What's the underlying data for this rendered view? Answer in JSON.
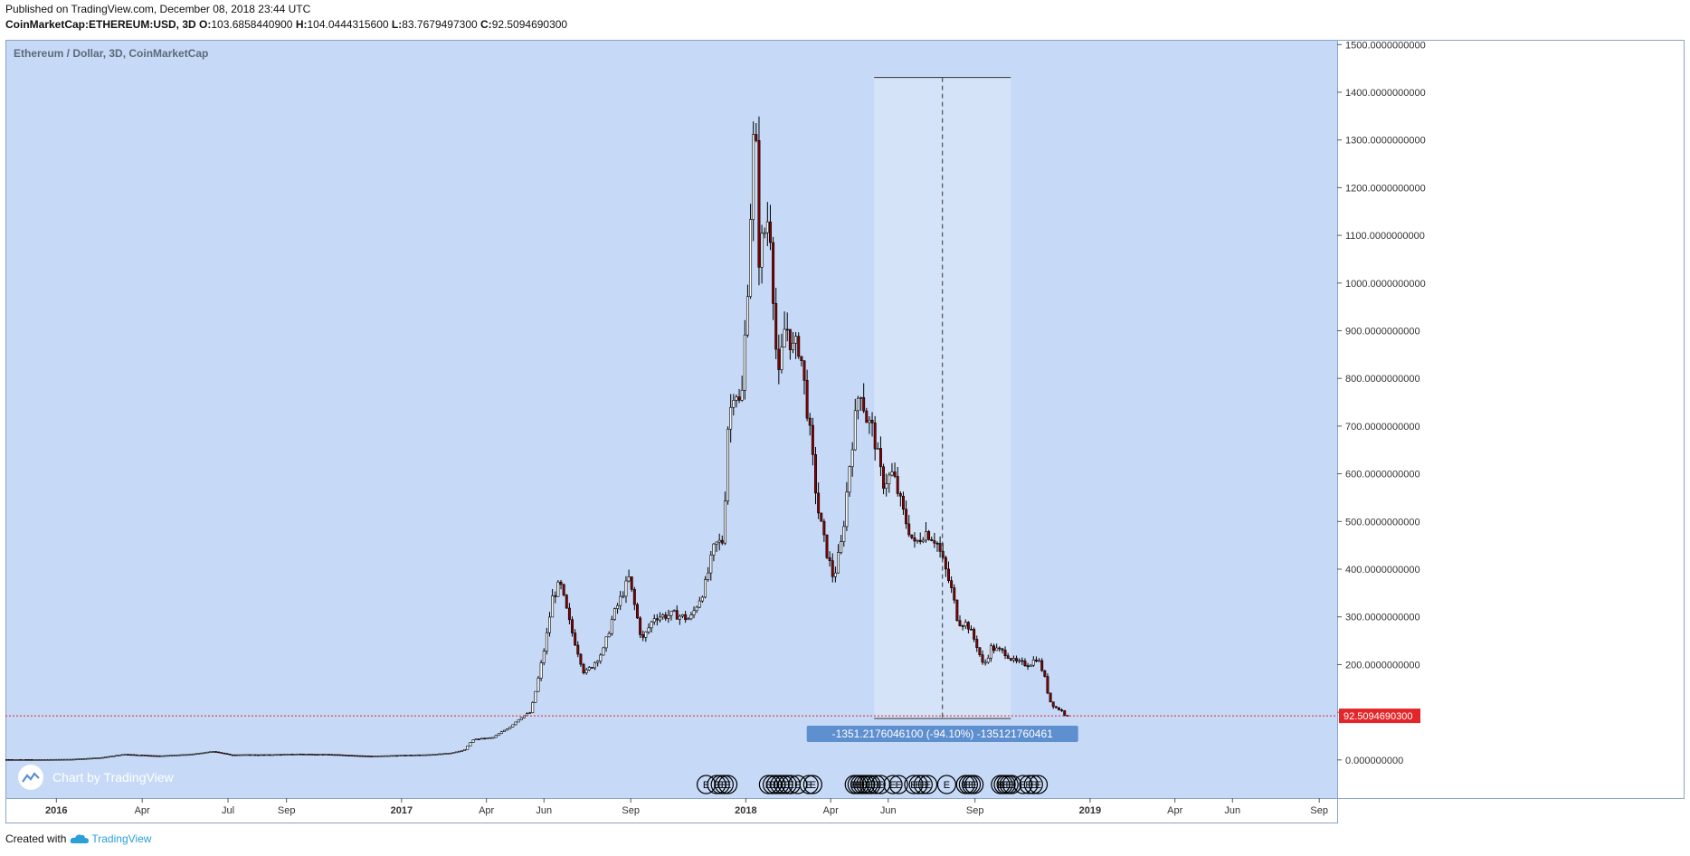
{
  "header": {
    "published": "Published on TradingView.com, December 08, 2018 23:44 UTC",
    "symbol": "CoinMarketCap:ETHEREUM:USD, 3D",
    "o_label": "O:",
    "o_value": "103.6858440900",
    "h_label": "H:",
    "h_value": "104.0444315600",
    "l_label": "L:",
    "l_value": "83.7679497300",
    "c_label": "C:",
    "c_value": "92.5094690300"
  },
  "chart_title": "Ethereum / Dollar, 3D, CoinMarketCap",
  "watermark": "Chart by TradingView",
  "footer": {
    "created_with": "Created with",
    "brand": "TradingView"
  },
  "colors": {
    "background": "#c6d9f6",
    "up_candle": "#ffffff",
    "down_candle": "#8b0000",
    "wick": "#000000",
    "price_line": "#e3262a",
    "measure_box": "#d4e3f8",
    "measure_label_bg": "#5e8fcf"
  },
  "chart_data": {
    "type": "candlestick",
    "title": "Ethereum / Dollar, 3D, CoinMarketCap",
    "interval": "3D",
    "x_tick_labels": [
      "2016",
      "Apr",
      "Jul",
      "Sep",
      "2017",
      "Apr",
      "Jun",
      "Sep",
      "2018",
      "Apr",
      "Jun",
      "Sep",
      "2019",
      "Apr",
      "Jun",
      "Sep"
    ],
    "x_tick_dates": [
      "2016-01-01",
      "2016-04-01",
      "2016-07-01",
      "2016-09-01",
      "2017-01-01",
      "2017-04-01",
      "2017-06-01",
      "2017-09-01",
      "2018-01-01",
      "2018-04-01",
      "2018-06-01",
      "2018-09-01",
      "2019-01-01",
      "2019-04-01",
      "2019-06-01",
      "2019-09-01"
    ],
    "y_tick_labels": [
      "0.000000000",
      "100.0000000000",
      "200.0000000000",
      "300.0000000000",
      "400.0000000000",
      "500.0000000000",
      "600.0000000000",
      "700.0000000000",
      "800.0000000000",
      "900.0000000000",
      "1000.0000000000",
      "1100.0000000000",
      "1200.0000000000",
      "1300.0000000000",
      "1400.0000000000",
      "1500.0000000000"
    ],
    "ylim": [
      -80,
      1510
    ],
    "xlim": [
      "2015-11-08",
      "2019-09-20"
    ],
    "last_price": 92.50946903,
    "last_price_label": "92.5094690300",
    "price_path": [
      [
        "2015-11-08",
        0.9
      ],
      [
        "2015-12-15",
        0.85
      ],
      [
        "2016-01-20",
        1.5
      ],
      [
        "2016-02-20",
        5
      ],
      [
        "2016-03-15",
        12
      ],
      [
        "2016-04-20",
        8.5
      ],
      [
        "2016-05-25",
        12
      ],
      [
        "2016-06-18",
        18
      ],
      [
        "2016-07-05",
        11
      ],
      [
        "2016-08-15",
        11
      ],
      [
        "2016-09-15",
        12.5
      ],
      [
        "2016-10-20",
        11.5
      ],
      [
        "2016-12-01",
        8
      ],
      [
        "2017-01-05",
        10
      ],
      [
        "2017-02-05",
        11.5
      ],
      [
        "2017-02-25",
        15
      ],
      [
        "2017-03-10",
        20
      ],
      [
        "2017-03-20",
        43
      ],
      [
        "2017-04-10",
        47
      ],
      [
        "2017-04-28",
        70
      ],
      [
        "2017-05-10",
        90
      ],
      [
        "2017-05-20",
        100
      ],
      [
        "2017-05-28",
        170
      ],
      [
        "2017-06-05",
        250
      ],
      [
        "2017-06-12",
        340
      ],
      [
        "2017-06-20",
        370
      ],
      [
        "2017-07-01",
        280
      ],
      [
        "2017-07-16",
        180
      ],
      [
        "2017-07-25",
        200
      ],
      [
        "2017-08-05",
        230
      ],
      [
        "2017-08-15",
        300
      ],
      [
        "2017-09-01",
        380
      ],
      [
        "2017-09-15",
        250
      ],
      [
        "2017-09-28",
        300
      ],
      [
        "2017-10-20",
        305
      ],
      [
        "2017-11-05",
        295
      ],
      [
        "2017-11-20",
        360
      ],
      [
        "2017-12-01",
        450
      ],
      [
        "2017-12-10",
        460
      ],
      [
        "2017-12-15",
        700
      ],
      [
        "2017-12-22",
        790
      ],
      [
        "2017-12-29",
        730
      ],
      [
        "2018-01-05",
        1000
      ],
      [
        "2018-01-10",
        1250
      ],
      [
        "2018-01-13",
        1380
      ],
      [
        "2018-01-16",
        1050
      ],
      [
        "2018-01-22",
        1100
      ],
      [
        "2018-01-28",
        1150
      ],
      [
        "2018-02-06",
        780
      ],
      [
        "2018-02-14",
        920
      ],
      [
        "2018-02-22",
        860
      ],
      [
        "2018-03-01",
        870
      ],
      [
        "2018-03-10",
        720
      ],
      [
        "2018-03-20",
        530
      ],
      [
        "2018-03-28",
        450
      ],
      [
        "2018-04-06",
        380
      ],
      [
        "2018-04-15",
        460
      ],
      [
        "2018-04-24",
        640
      ],
      [
        "2018-05-04",
        790
      ],
      [
        "2018-05-10",
        720
      ],
      [
        "2018-05-18",
        690
      ],
      [
        "2018-05-28",
        580
      ],
      [
        "2018-06-08",
        600
      ],
      [
        "2018-06-20",
        510
      ],
      [
        "2018-07-01",
        450
      ],
      [
        "2018-07-12",
        480
      ],
      [
        "2018-07-24",
        460
      ],
      [
        "2018-08-01",
        410
      ],
      [
        "2018-08-10",
        350
      ],
      [
        "2018-08-16",
        290
      ],
      [
        "2018-08-26",
        285
      ],
      [
        "2018-09-05",
        240
      ],
      [
        "2018-09-12",
        195
      ],
      [
        "2018-09-20",
        235
      ],
      [
        "2018-10-05",
        225
      ],
      [
        "2018-10-15",
        205
      ],
      [
        "2018-10-30",
        200
      ],
      [
        "2018-11-08",
        215
      ],
      [
        "2018-11-15",
        180
      ],
      [
        "2018-11-21",
        125
      ],
      [
        "2018-11-27",
        110
      ],
      [
        "2018-12-03",
        105
      ],
      [
        "2018-12-08",
        92.5
      ]
    ],
    "measure_tool": {
      "start_date": "2018-05-17",
      "end_date": "2018-10-09",
      "top_value": 1431,
      "bottom_value": 87,
      "label": "-1351.2176046100 (-94.10%) -135121760461"
    },
    "event_markers": {
      "glyph": "E",
      "dates": [
        "2017-11-20",
        "2017-12-01",
        "2017-12-05",
        "2017-12-09",
        "2017-12-13",
        "2018-01-25",
        "2018-01-29",
        "2018-02-02",
        "2018-02-06",
        "2018-02-10",
        "2018-02-14",
        "2018-02-18",
        "2018-02-25",
        "2018-03-09",
        "2018-03-13",
        "2018-04-26",
        "2018-04-29",
        "2018-05-02",
        "2018-05-05",
        "2018-05-08",
        "2018-05-11",
        "2018-05-14",
        "2018-05-19",
        "2018-05-24",
        "2018-06-06",
        "2018-06-12",
        "2018-06-28",
        "2018-07-03",
        "2018-07-08",
        "2018-07-13",
        "2018-08-02",
        "2018-08-22",
        "2018-08-25",
        "2018-08-28",
        "2018-08-31",
        "2018-09-28",
        "2018-10-01",
        "2018-10-04",
        "2018-10-07",
        "2018-10-10",
        "2018-10-22",
        "2018-10-28",
        "2018-11-02",
        "2018-11-07"
      ]
    }
  }
}
